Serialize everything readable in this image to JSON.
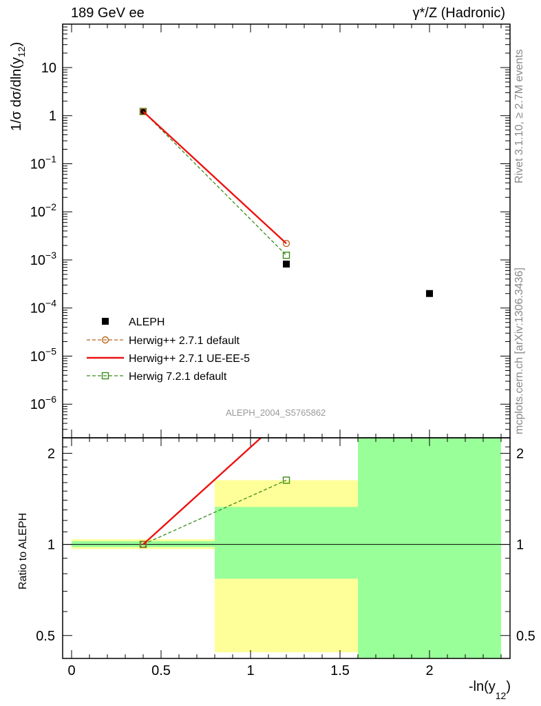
{
  "header": {
    "left_label": "189 GeV ee",
    "right_label": "γ*/Z (Hadronic)"
  },
  "side_labels": {
    "rivet": "Rivet 3.1.10, ≥ 2.7M events",
    "mcplots": "mcplots.cern.ch [arXiv:1306.3436]"
  },
  "watermark": "ALEPH_2004_S5765862",
  "colors": {
    "aleph": "#000000",
    "herwigpp_default": "#b8661c",
    "herwigpp_ueee5": "#ee1111",
    "herwig721": "#3a8a1a",
    "band_yellow": "#ffff99",
    "band_green": "#99ff99"
  },
  "chart_data": [
    {
      "type": "scatter",
      "title": "",
      "xlabel": "",
      "ylabel": "1/σ dσ/dln(y12)",
      "yscale": "log",
      "xlim": [
        -0.05,
        2.45
      ],
      "ylim": [
        2e-07,
        80
      ],
      "y_tick_labels": [
        "10",
        "1",
        "10^-1",
        "10^-2",
        "10^-3",
        "10^-4",
        "10^-5",
        "10^-6"
      ],
      "legend_position": "bottom-left",
      "series": [
        {
          "name": "ALEPH",
          "style": "square-filled",
          "x": [
            0.4,
            1.2,
            2.0
          ],
          "y": [
            1.22,
            0.00082,
            0.0002
          ]
        },
        {
          "name": "Herwig++ 2.7.1 default",
          "style": "circle-dashed",
          "x": [
            0.4,
            1.2
          ],
          "y": [
            1.22,
            0.0022
          ]
        },
        {
          "name": "Herwig++ 2.7.1 UE-EE-5",
          "style": "solid",
          "x": [
            0.4,
            1.2
          ],
          "y": [
            1.22,
            0.0022
          ]
        },
        {
          "name": "Herwig 7.2.1 default",
          "style": "square-dashed",
          "x": [
            0.4,
            1.2
          ],
          "y": [
            1.22,
            0.00125
          ]
        }
      ]
    },
    {
      "type": "line",
      "title": "",
      "xlabel": "-ln(y12)",
      "ylabel": "Ratio to ALEPH",
      "yscale": "log",
      "xlim": [
        -0.05,
        2.45
      ],
      "ylim": [
        0.42,
        2.25
      ],
      "x_ticks": [
        0,
        0.5,
        1,
        1.5,
        2
      ],
      "x_tick_labels": [
        "0",
        "0.5",
        "1",
        "1.5",
        "2"
      ],
      "y_ticks": [
        0.5,
        1,
        2
      ],
      "y_tick_labels": [
        "0.5",
        "1",
        "2"
      ],
      "bands": [
        {
          "x0": 0.0,
          "x1": 0.8,
          "stat_lo": 0.98,
          "stat_hi": 1.025,
          "tot_lo": 0.965,
          "tot_hi": 1.04
        },
        {
          "x0": 0.8,
          "x1": 1.6,
          "stat_lo": 0.77,
          "stat_hi": 1.33,
          "tot_lo": 0.44,
          "tot_hi": 1.63
        },
        {
          "x0": 1.6,
          "x1": 2.4,
          "stat_lo": 0.42,
          "stat_hi": 2.25,
          "tot_lo": 0.42,
          "tot_hi": 2.25
        }
      ],
      "series": [
        {
          "name": "Herwig++ 2.7.1 default",
          "x": [
            0.4,
            1.2
          ],
          "y": [
            1.0,
            2.68
          ]
        },
        {
          "name": "Herwig++ 2.7.1 UE-EE-5",
          "x": [
            0.4,
            1.2
          ],
          "y": [
            1.0,
            2.68
          ]
        },
        {
          "name": "Herwig 7.2.1 default",
          "x": [
            0.4,
            1.2
          ],
          "y": [
            1.0,
            1.63
          ]
        }
      ]
    }
  ]
}
